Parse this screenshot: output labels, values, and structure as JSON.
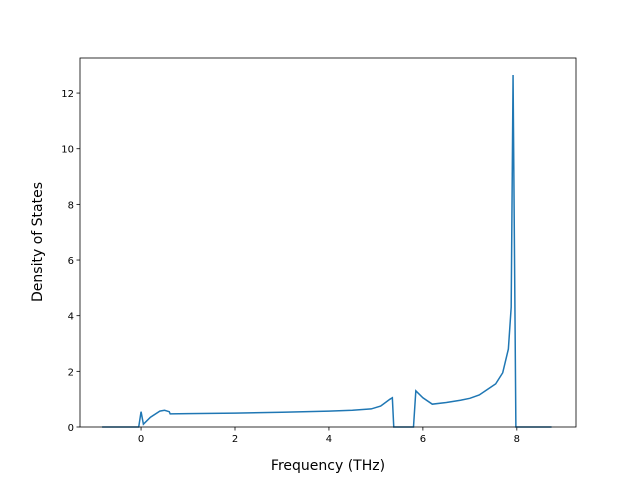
{
  "chart_data": {
    "type": "line",
    "xlabel": "Frequency (THz)",
    "ylabel": "Density of States",
    "series": [
      {
        "color": "#1f77b4",
        "x": [
          -0.83,
          -0.05,
          0,
          0.05,
          0.2,
          0.4,
          0.5,
          0.6,
          0.62,
          1,
          2,
          3,
          4,
          4.5,
          4.9,
          5.1,
          5.3,
          5.35,
          5.38,
          5.8,
          5.85,
          6.0,
          6.2,
          6.5,
          6.8,
          7.0,
          7.2,
          7.4,
          7.55,
          7.7,
          7.82,
          7.88,
          7.92,
          7.98,
          8.74
        ],
        "values": [
          0,
          0,
          0.55,
          0.1,
          0.35,
          0.57,
          0.6,
          0.55,
          0.47,
          0.48,
          0.5,
          0.53,
          0.57,
          0.6,
          0.65,
          0.75,
          1.0,
          1.05,
          0,
          0,
          1.3,
          1.05,
          0.82,
          0.88,
          0.96,
          1.03,
          1.15,
          1.38,
          1.55,
          1.95,
          2.8,
          4.3,
          12.65,
          0,
          0
        ]
      }
    ],
    "xlim": [
      -1.3,
      9.26
    ],
    "xticks": [
      0,
      2,
      4,
      6,
      8
    ],
    "ylim": [
      0,
      13.26
    ],
    "yticks": [
      0,
      2,
      4,
      6,
      8,
      10,
      12
    ]
  }
}
